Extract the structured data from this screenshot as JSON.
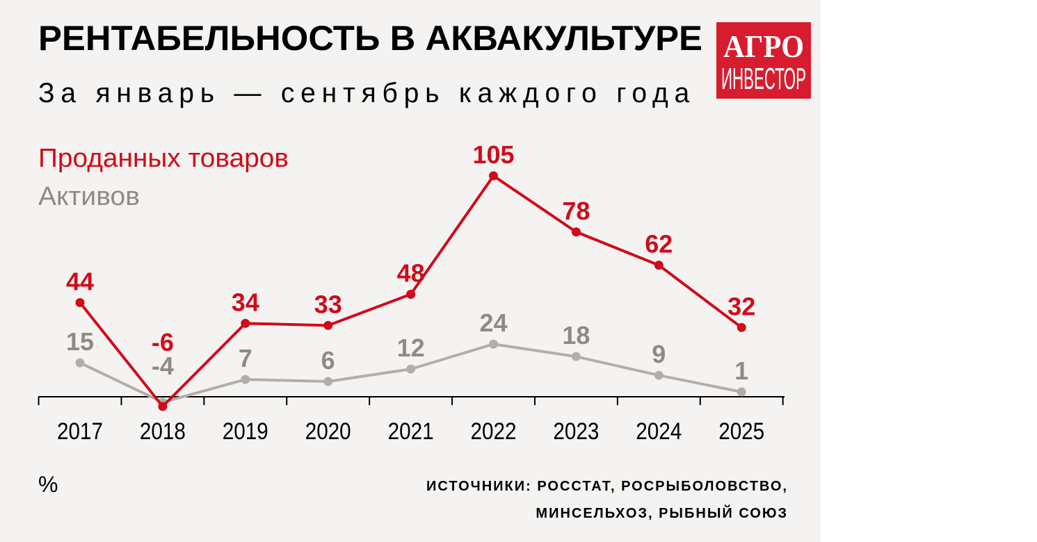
{
  "title": "РЕНТАБЕЛЬНОСТЬ В АКВАКУЛЬТУРЕ",
  "subtitle": "За январь — сентябрь каждого года",
  "logo": {
    "line1": "АГРО",
    "line2": "ИНВЕСТОР",
    "color": "#d81c2f"
  },
  "unit": "%",
  "source_line1": "ИСТОЧНИКИ: РОССТАТ, РОСРЫБОЛОВСТВО,",
  "source_line2": "МИНСЕЛЬХОЗ, РЫБНЫЙ СОЮЗ",
  "chart_data": {
    "type": "line",
    "title": "РЕНТАБЕЛЬНОСТЬ В АКВАКУЛЬТУРЕ",
    "x": [
      "2017",
      "2018",
      "2019",
      "2020",
      "2021",
      "2022",
      "2023",
      "2024",
      "2025"
    ],
    "ylabel": "%",
    "ylim": [
      -6,
      111
    ],
    "grid": false,
    "legend": "top-left",
    "series": [
      {
        "name": "Проданных товаров",
        "color": "#d10a1a",
        "values": [
          44,
          -6,
          34,
          33,
          48,
          105,
          78,
          62,
          32
        ]
      },
      {
        "name": "Активов",
        "color": "#b3aeab",
        "label_color": "#8f8a86",
        "values": [
          15,
          -4,
          7,
          6,
          12,
          24,
          18,
          9,
          1
        ]
      }
    ]
  }
}
